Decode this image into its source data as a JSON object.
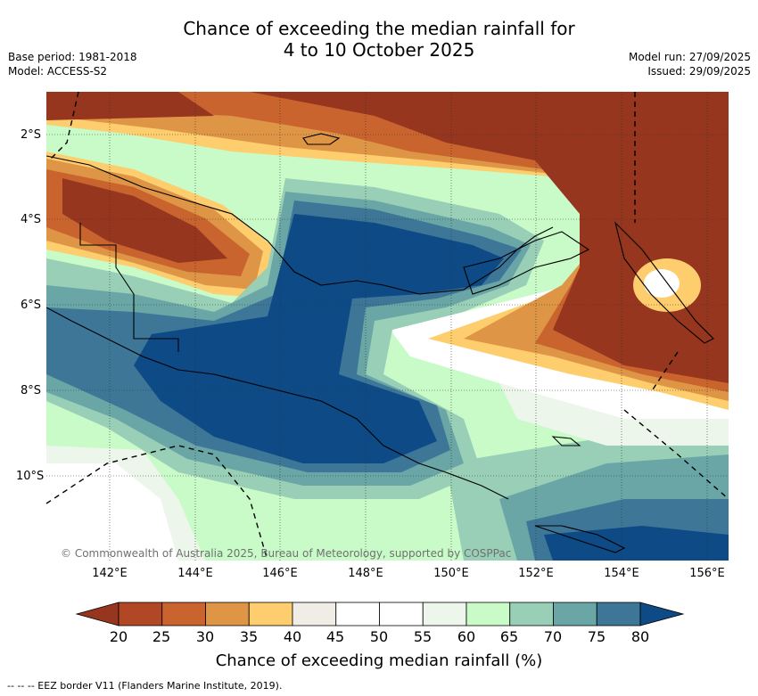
{
  "title_line1": "Chance of exceeding the median rainfall for",
  "title_line2": "4 to 10 October 2025",
  "base_period": "Base period: 1981-2018",
  "model": "Model: ACCESS-S2",
  "model_run": "Model run: 27/09/2025",
  "issued": "Issued: 29/09/2025",
  "copyright": "© Commonwealth of Australia 2025, Bureau of Meteorology, supported by COSPPac",
  "lat_labels": [
    "2°S",
    "4°S",
    "6°S",
    "8°S",
    "10°S"
  ],
  "lon_labels": [
    "142°E",
    "144°E",
    "146°E",
    "148°E",
    "150°E",
    "152°E",
    "154°E",
    "156°E"
  ],
  "colorbar": {
    "ticks": [
      "20",
      "25",
      "30",
      "35",
      "40",
      "45",
      "50",
      "55",
      "60",
      "65",
      "70",
      "75",
      "80"
    ],
    "low_color": "#97361e",
    "high_color": "#0e4a85",
    "colors": [
      "#b14725",
      "#c9642f",
      "#df9546",
      "#fdcd6e",
      "#f0ece6",
      "#ffffff",
      "#ffffff",
      "#ecf6ea",
      "#c9fbc8",
      "#99cfb7",
      "#6aa6a6",
      "#3e7698"
    ],
    "label": "Chance of exceeding median rainfall (%)"
  },
  "footnote": "--  --  -- EEZ border V11 (Flanders Marine Institute, 2019)."
}
